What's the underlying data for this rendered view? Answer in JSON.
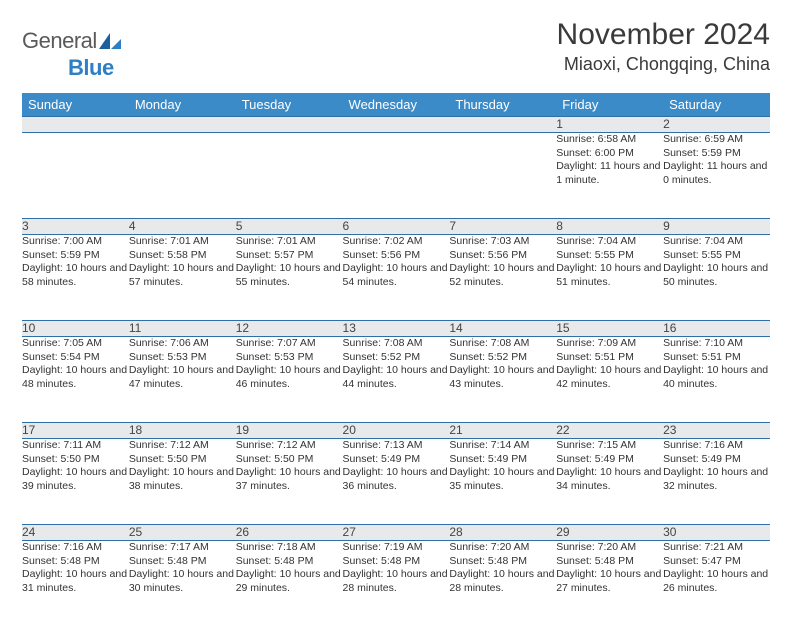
{
  "logo": {
    "general": "General",
    "blue": "Blue"
  },
  "title": "November 2024",
  "location": "Miaoxi, Chongqing, China",
  "colors": {
    "header_bg": "#3b8bc9",
    "header_text": "#ffffff",
    "daynum_bg": "#e8e9ea",
    "border": "#2f6fa8",
    "text": "#333333",
    "logo_gray": "#5a5a5a",
    "logo_blue": "#2f7fc4"
  },
  "weekdays": [
    "Sunday",
    "Monday",
    "Tuesday",
    "Wednesday",
    "Thursday",
    "Friday",
    "Saturday"
  ],
  "weeks": [
    [
      null,
      null,
      null,
      null,
      null,
      {
        "n": "1",
        "sr": "6:58 AM",
        "ss": "6:00 PM",
        "dl": "11 hours and 1 minute."
      },
      {
        "n": "2",
        "sr": "6:59 AM",
        "ss": "5:59 PM",
        "dl": "11 hours and 0 minutes."
      }
    ],
    [
      {
        "n": "3",
        "sr": "7:00 AM",
        "ss": "5:59 PM",
        "dl": "10 hours and 58 minutes."
      },
      {
        "n": "4",
        "sr": "7:01 AM",
        "ss": "5:58 PM",
        "dl": "10 hours and 57 minutes."
      },
      {
        "n": "5",
        "sr": "7:01 AM",
        "ss": "5:57 PM",
        "dl": "10 hours and 55 minutes."
      },
      {
        "n": "6",
        "sr": "7:02 AM",
        "ss": "5:56 PM",
        "dl": "10 hours and 54 minutes."
      },
      {
        "n": "7",
        "sr": "7:03 AM",
        "ss": "5:56 PM",
        "dl": "10 hours and 52 minutes."
      },
      {
        "n": "8",
        "sr": "7:04 AM",
        "ss": "5:55 PM",
        "dl": "10 hours and 51 minutes."
      },
      {
        "n": "9",
        "sr": "7:04 AM",
        "ss": "5:55 PM",
        "dl": "10 hours and 50 minutes."
      }
    ],
    [
      {
        "n": "10",
        "sr": "7:05 AM",
        "ss": "5:54 PM",
        "dl": "10 hours and 48 minutes."
      },
      {
        "n": "11",
        "sr": "7:06 AM",
        "ss": "5:53 PM",
        "dl": "10 hours and 47 minutes."
      },
      {
        "n": "12",
        "sr": "7:07 AM",
        "ss": "5:53 PM",
        "dl": "10 hours and 46 minutes."
      },
      {
        "n": "13",
        "sr": "7:08 AM",
        "ss": "5:52 PM",
        "dl": "10 hours and 44 minutes."
      },
      {
        "n": "14",
        "sr": "7:08 AM",
        "ss": "5:52 PM",
        "dl": "10 hours and 43 minutes."
      },
      {
        "n": "15",
        "sr": "7:09 AM",
        "ss": "5:51 PM",
        "dl": "10 hours and 42 minutes."
      },
      {
        "n": "16",
        "sr": "7:10 AM",
        "ss": "5:51 PM",
        "dl": "10 hours and 40 minutes."
      }
    ],
    [
      {
        "n": "17",
        "sr": "7:11 AM",
        "ss": "5:50 PM",
        "dl": "10 hours and 39 minutes."
      },
      {
        "n": "18",
        "sr": "7:12 AM",
        "ss": "5:50 PM",
        "dl": "10 hours and 38 minutes."
      },
      {
        "n": "19",
        "sr": "7:12 AM",
        "ss": "5:50 PM",
        "dl": "10 hours and 37 minutes."
      },
      {
        "n": "20",
        "sr": "7:13 AM",
        "ss": "5:49 PM",
        "dl": "10 hours and 36 minutes."
      },
      {
        "n": "21",
        "sr": "7:14 AM",
        "ss": "5:49 PM",
        "dl": "10 hours and 35 minutes."
      },
      {
        "n": "22",
        "sr": "7:15 AM",
        "ss": "5:49 PM",
        "dl": "10 hours and 34 minutes."
      },
      {
        "n": "23",
        "sr": "7:16 AM",
        "ss": "5:49 PM",
        "dl": "10 hours and 32 minutes."
      }
    ],
    [
      {
        "n": "24",
        "sr": "7:16 AM",
        "ss": "5:48 PM",
        "dl": "10 hours and 31 minutes."
      },
      {
        "n": "25",
        "sr": "7:17 AM",
        "ss": "5:48 PM",
        "dl": "10 hours and 30 minutes."
      },
      {
        "n": "26",
        "sr": "7:18 AM",
        "ss": "5:48 PM",
        "dl": "10 hours and 29 minutes."
      },
      {
        "n": "27",
        "sr": "7:19 AM",
        "ss": "5:48 PM",
        "dl": "10 hours and 28 minutes."
      },
      {
        "n": "28",
        "sr": "7:20 AM",
        "ss": "5:48 PM",
        "dl": "10 hours and 28 minutes."
      },
      {
        "n": "29",
        "sr": "7:20 AM",
        "ss": "5:48 PM",
        "dl": "10 hours and 27 minutes."
      },
      {
        "n": "30",
        "sr": "7:21 AM",
        "ss": "5:47 PM",
        "dl": "10 hours and 26 minutes."
      }
    ]
  ],
  "labels": {
    "sunrise": "Sunrise: ",
    "sunset": "Sunset: ",
    "daylight": "Daylight: "
  }
}
